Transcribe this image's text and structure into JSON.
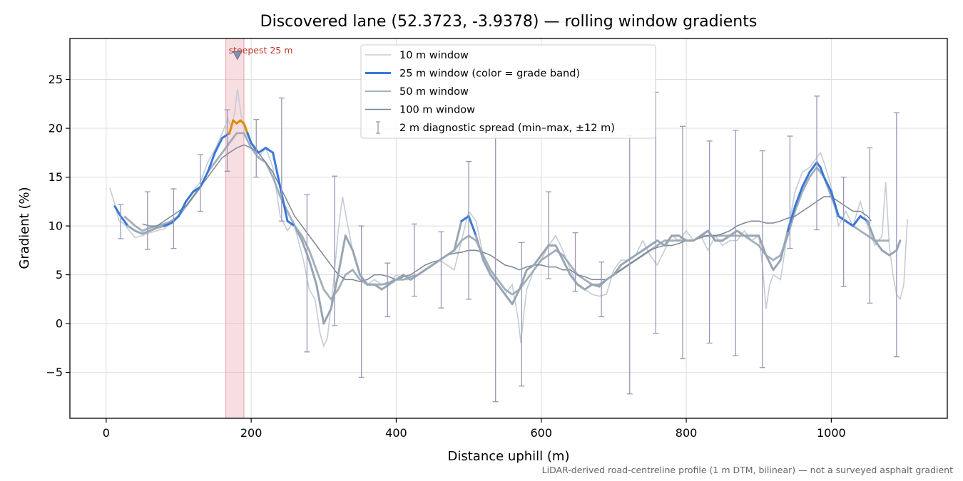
{
  "chart_data": {
    "type": "line",
    "title": "Discovered lane (52.3723, -3.9378) — rolling window gradients",
    "xlabel": "Distance uphill (m)",
    "ylabel": "Gradient (%)",
    "xlim": [
      -50,
      1160
    ],
    "ylim": [
      -9.7,
      29.2
    ],
    "x_ticks": [
      0,
      200,
      400,
      600,
      800,
      1000
    ],
    "y_ticks": [
      -5,
      0,
      5,
      10,
      15,
      20,
      25
    ],
    "grid": true,
    "legend_position": "top-center",
    "legend": [
      "10 m window",
      "25 m window (color = grade band)",
      "50 m window",
      "100 m window",
      "2 m diagnostic spread (min–max, ±12 m)"
    ],
    "annotation": {
      "text": "steepest 25 m",
      "x_range": [
        165,
        190
      ],
      "marker_x": 181,
      "marker_y": 27.5
    },
    "caption": "LiDAR-derived road-centreline profile (1 m DTM, bilinear) — not a surveyed asphalt gradient",
    "colors": {
      "w10": "#c5ccd6",
      "w25": "#3b78d8",
      "w25_steep": "#e08b00",
      "w50": "#98a6b4",
      "w100": "#7a8694",
      "spread": "#9a97bb",
      "highlight": "#e8a1a8",
      "annot": "#c0392b"
    },
    "series": [
      {
        "name": "10 m window",
        "x": [
          5,
          12,
          18,
          25,
          32,
          40,
          50,
          60,
          70,
          80,
          90,
          100,
          110,
          120,
          130,
          140,
          150,
          160,
          168,
          173,
          178,
          181,
          184,
          188,
          193,
          200,
          210,
          220,
          230,
          240,
          250,
          258,
          265,
          272,
          280,
          288,
          295,
          300,
          305,
          312,
          320,
          326,
          332,
          340,
          350,
          360,
          370,
          380,
          390,
          400,
          410,
          420,
          430,
          440,
          450,
          460,
          470,
          480,
          490,
          500,
          510,
          520,
          530,
          540,
          550,
          560,
          568,
          572,
          576,
          580,
          590,
          600,
          610,
          620,
          630,
          640,
          650,
          660,
          670,
          680,
          690,
          700,
          710,
          720,
          730,
          740,
          750,
          760,
          770,
          780,
          790,
          800,
          810,
          820,
          830,
          840,
          850,
          860,
          870,
          880,
          890,
          900,
          905,
          910,
          915,
          920,
          930,
          940,
          950,
          960,
          970,
          980,
          985,
          990,
          1000,
          1010,
          1020,
          1030,
          1040,
          1050,
          1060,
          1070,
          1075,
          1080,
          1085,
          1090,
          1095,
          1100,
          1105
        ],
        "values": [
          13.9,
          12.2,
          10.5,
          10.2,
          9.5,
          8.8,
          9.0,
          9.3,
          9.5,
          9.7,
          10.3,
          11.2,
          12.5,
          13.6,
          14.5,
          16.5,
          17.8,
          19.5,
          21.0,
          20.0,
          22.0,
          24.0,
          22.5,
          20.5,
          19.5,
          18.5,
          17.0,
          18.0,
          16.0,
          11.0,
          9.5,
          10.5,
          8.5,
          6.5,
          3.5,
          2.5,
          -1.0,
          -2.3,
          -1.5,
          3.0,
          9.5,
          13.0,
          10.5,
          7.5,
          5.0,
          4.0,
          4.5,
          4.0,
          4.0,
          5.0,
          4.5,
          4.5,
          5.0,
          5.5,
          6.0,
          6.5,
          6.0,
          5.5,
          8.5,
          11.5,
          10.5,
          7.0,
          5.5,
          4.0,
          3.0,
          4.0,
          0.5,
          -2.0,
          1.0,
          3.5,
          5.5,
          6.5,
          8.0,
          9.0,
          7.5,
          5.5,
          4.0,
          3.5,
          3.0,
          2.8,
          3.0,
          5.5,
          6.5,
          6.5,
          7.0,
          8.5,
          7.0,
          6.0,
          7.5,
          9.0,
          8.5,
          9.5,
          8.5,
          9.0,
          7.5,
          9.0,
          8.0,
          8.5,
          8.5,
          9.5,
          8.5,
          9.0,
          6.0,
          1.5,
          4.0,
          5.0,
          4.5,
          9.5,
          13.5,
          15.5,
          16.0,
          17.0,
          17.5,
          16.5,
          14.0,
          10.0,
          11.5,
          10.0,
          12.5,
          10.0,
          8.0,
          9.0,
          14.5,
          8.0,
          5.0,
          3.0,
          2.5,
          4.0,
          10.7
        ]
      },
      {
        "name": "25 m window (color = grade band)",
        "x": [
          12,
          20,
          30,
          40,
          50,
          60,
          70,
          80,
          90,
          100,
          110,
          120,
          130,
          140,
          150,
          160,
          170,
          175,
          180,
          185,
          190,
          195,
          200,
          210,
          220,
          230,
          240,
          250,
          260,
          270,
          280,
          290,
          300,
          310,
          320,
          330,
          340,
          350,
          360,
          370,
          380,
          390,
          400,
          410,
          420,
          430,
          440,
          450,
          460,
          470,
          480,
          490,
          500,
          510,
          520,
          530,
          540,
          550,
          560,
          570,
          580,
          590,
          600,
          610,
          620,
          630,
          640,
          650,
          660,
          670,
          680,
          690,
          700,
          710,
          720,
          730,
          740,
          750,
          760,
          770,
          780,
          790,
          800,
          810,
          820,
          830,
          840,
          850,
          860,
          870,
          880,
          890,
          900,
          910,
          920,
          930,
          940,
          950,
          960,
          970,
          975,
          980,
          985,
          990,
          1000,
          1010,
          1020,
          1030,
          1040,
          1050,
          1060,
          1070,
          1080,
          1090,
          1095
        ],
        "values": [
          12.0,
          11.0,
          10.0,
          9.5,
          9.2,
          9.5,
          9.8,
          10.0,
          10.3,
          11.0,
          12.5,
          13.5,
          14.0,
          15.5,
          17.5,
          19.0,
          19.5,
          20.8,
          20.5,
          20.8,
          20.5,
          19.5,
          18.5,
          17.5,
          18.0,
          17.5,
          14.0,
          10.5,
          10.0,
          8.5,
          6.5,
          4.0,
          0.0,
          1.5,
          5.0,
          9.0,
          7.5,
          5.0,
          4.0,
          4.0,
          3.5,
          4.0,
          4.5,
          5.0,
          4.5,
          5.0,
          5.5,
          6.0,
          6.5,
          7.0,
          7.5,
          10.5,
          11.0,
          9.0,
          6.5,
          5.0,
          4.0,
          3.0,
          2.0,
          3.5,
          5.5,
          6.0,
          7.0,
          8.0,
          8.0,
          6.5,
          5.0,
          4.0,
          3.5,
          4.0,
          3.8,
          4.5,
          5.0,
          6.0,
          6.5,
          7.0,
          7.5,
          8.0,
          8.5,
          8.0,
          9.0,
          9.0,
          8.5,
          8.5,
          9.0,
          9.5,
          8.5,
          8.5,
          9.0,
          9.5,
          9.0,
          9.0,
          9.0,
          7.0,
          5.5,
          6.5,
          9.5,
          12.0,
          14.0,
          15.5,
          16.0,
          16.5,
          16.0,
          15.0,
          13.5,
          11.0,
          10.5,
          10.0,
          11.0,
          10.5,
          8.5,
          7.5,
          7.0,
          7.5,
          8.5
        ]
      },
      {
        "name": "50 m window",
        "x": [
          25,
          40,
          50,
          60,
          70,
          80,
          90,
          100,
          110,
          120,
          130,
          140,
          150,
          160,
          170,
          180,
          190,
          200,
          210,
          220,
          230,
          240,
          250,
          260,
          270,
          280,
          290,
          300,
          310,
          320,
          330,
          340,
          350,
          360,
          370,
          380,
          390,
          400,
          410,
          420,
          430,
          440,
          450,
          460,
          470,
          480,
          490,
          500,
          510,
          520,
          530,
          540,
          550,
          560,
          570,
          580,
          590,
          600,
          610,
          620,
          630,
          640,
          650,
          660,
          670,
          680,
          690,
          700,
          710,
          720,
          730,
          740,
          750,
          760,
          770,
          780,
          790,
          800,
          810,
          820,
          830,
          840,
          850,
          860,
          870,
          880,
          890,
          900,
          910,
          920,
          930,
          940,
          950,
          960,
          970,
          980,
          990,
          1000,
          1010,
          1020,
          1030,
          1040,
          1050,
          1060,
          1070,
          1080
        ],
        "values": [
          11.0,
          10.0,
          9.5,
          9.8,
          10.0,
          10.2,
          10.5,
          11.0,
          12.0,
          13.0,
          14.0,
          15.5,
          16.5,
          17.5,
          18.5,
          19.5,
          19.5,
          18.0,
          17.0,
          16.5,
          15.0,
          13.0,
          11.5,
          10.0,
          9.0,
          7.5,
          5.5,
          3.5,
          2.5,
          3.5,
          5.0,
          5.5,
          4.5,
          4.0,
          4.0,
          4.0,
          4.2,
          4.5,
          4.5,
          4.8,
          5.0,
          5.5,
          6.0,
          6.5,
          7.0,
          7.5,
          8.5,
          9.0,
          8.5,
          7.0,
          5.5,
          4.5,
          3.5,
          3.0,
          3.5,
          4.5,
          5.5,
          6.5,
          7.0,
          7.5,
          7.0,
          6.0,
          5.0,
          4.5,
          4.0,
          4.0,
          4.5,
          5.0,
          5.5,
          6.0,
          6.5,
          7.0,
          7.5,
          8.0,
          8.5,
          8.5,
          8.5,
          8.5,
          8.5,
          9.0,
          9.0,
          9.0,
          9.0,
          9.0,
          9.0,
          9.0,
          8.5,
          8.0,
          7.0,
          6.5,
          7.0,
          9.0,
          11.5,
          13.5,
          15.0,
          16.0,
          15.0,
          13.0,
          11.0,
          10.5,
          10.0,
          9.5,
          9.0,
          8.5,
          8.5,
          8.5
        ]
      },
      {
        "name": "100 m window",
        "x": [
          50,
          60,
          70,
          80,
          90,
          100,
          110,
          120,
          130,
          140,
          150,
          160,
          170,
          180,
          190,
          200,
          210,
          220,
          230,
          240,
          250,
          260,
          270,
          280,
          290,
          300,
          310,
          320,
          330,
          340,
          350,
          360,
          370,
          380,
          390,
          400,
          410,
          420,
          430,
          440,
          450,
          460,
          470,
          480,
          490,
          500,
          510,
          520,
          530,
          540,
          550,
          560,
          570,
          580,
          590,
          600,
          610,
          620,
          630,
          640,
          650,
          660,
          670,
          680,
          690,
          700,
          710,
          720,
          730,
          740,
          750,
          760,
          770,
          780,
          790,
          800,
          810,
          820,
          830,
          840,
          850,
          860,
          870,
          880,
          890,
          900,
          910,
          920,
          930,
          940,
          950,
          960,
          970,
          980,
          990,
          1000,
          1010,
          1020,
          1030,
          1040,
          1050,
          1055
        ],
        "values": [
          10.2,
          10.0,
          10.0,
          10.5,
          11.0,
          11.5,
          12.0,
          13.0,
          14.0,
          15.0,
          16.0,
          17.0,
          17.5,
          18.0,
          18.3,
          18.0,
          17.5,
          16.5,
          15.5,
          14.0,
          12.5,
          11.0,
          10.0,
          9.0,
          8.0,
          7.0,
          6.0,
          5.0,
          4.5,
          4.5,
          4.3,
          4.5,
          5.0,
          5.0,
          4.8,
          4.5,
          4.8,
          5.0,
          5.5,
          6.0,
          6.3,
          6.5,
          7.0,
          7.2,
          7.3,
          7.5,
          7.5,
          7.3,
          7.0,
          6.5,
          6.0,
          5.8,
          5.5,
          5.8,
          6.0,
          6.0,
          5.8,
          5.8,
          5.5,
          5.5,
          5.0,
          4.8,
          4.5,
          4.5,
          4.5,
          5.0,
          5.5,
          6.0,
          6.5,
          7.0,
          7.5,
          7.8,
          8.0,
          8.0,
          8.2,
          8.5,
          8.5,
          8.8,
          9.0,
          9.0,
          9.2,
          9.5,
          10.0,
          10.3,
          10.5,
          10.5,
          10.3,
          10.3,
          10.5,
          10.8,
          11.0,
          11.5,
          12.0,
          12.5,
          13.0,
          13.0,
          12.5,
          12.0,
          11.5,
          11.5,
          11.0,
          10.5
        ]
      }
    ],
    "steep_range": [
      172,
      193
    ],
    "spread": [
      {
        "x": 20,
        "low": 8.7,
        "high": 12.2
      },
      {
        "x": 57,
        "low": 7.6,
        "high": 13.5
      },
      {
        "x": 93,
        "low": 7.7,
        "high": 13.8
      },
      {
        "x": 130,
        "low": 11.5,
        "high": 17.3
      },
      {
        "x": 167,
        "low": 15.6,
        "high": 21.9
      },
      {
        "x": 207,
        "low": 15.0,
        "high": 20.9
      },
      {
        "x": 242,
        "low": 10.5,
        "high": 23.1
      },
      {
        "x": 277,
        "low": -2.9,
        "high": 13.2
      },
      {
        "x": 315,
        "low": -0.2,
        "high": 15.1
      },
      {
        "x": 352,
        "low": -5.5,
        "high": 10.0
      },
      {
        "x": 388,
        "low": 0.7,
        "high": 6.2
      },
      {
        "x": 425,
        "low": 2.8,
        "high": 10.2
      },
      {
        "x": 462,
        "low": 1.6,
        "high": 9.4
      },
      {
        "x": 500,
        "low": 2.5,
        "high": 16.6
      },
      {
        "x": 537,
        "low": -8.0,
        "high": 19.9
      },
      {
        "x": 573,
        "low": -6.4,
        "high": 8.3
      },
      {
        "x": 610,
        "low": 4.6,
        "high": 13.5
      },
      {
        "x": 647,
        "low": 3.3,
        "high": 9.3
      },
      {
        "x": 683,
        "low": 0.7,
        "high": 6.3
      },
      {
        "x": 722,
        "low": -7.2,
        "high": 19.3
      },
      {
        "x": 758,
        "low": -1.0,
        "high": 23.7
      },
      {
        "x": 795,
        "low": -3.6,
        "high": 20.2
      },
      {
        "x": 832,
        "low": -2.0,
        "high": 18.7
      },
      {
        "x": 868,
        "low": -3.3,
        "high": 19.8
      },
      {
        "x": 905,
        "low": -4.5,
        "high": 17.7
      },
      {
        "x": 943,
        "low": 7.7,
        "high": 19.2
      },
      {
        "x": 980,
        "low": 9.6,
        "high": 23.3
      },
      {
        "x": 1017,
        "low": 3.8,
        "high": 15.0
      },
      {
        "x": 1053,
        "low": 2.1,
        "high": 18.0
      },
      {
        "x": 1090,
        "low": -3.4,
        "high": 21.6
      }
    ]
  }
}
